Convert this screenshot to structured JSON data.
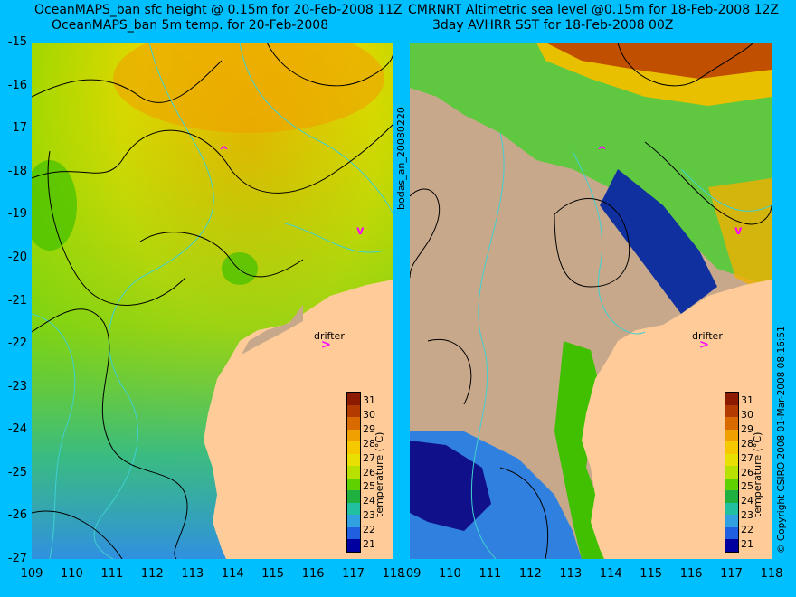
{
  "left": {
    "title_line1": "OceanMAPS_ban sfc height @ 0.15m for 20-Feb-2008 11Z",
    "title_line2": "OceanMAPS_ban 5m temp. for 20-Feb-2008"
  },
  "right": {
    "title_line1": "CMRNRT Altimetric sea level  @0.15m  for 18-Feb-2008 12Z",
    "title_line2": "3day AVHRR SST for 18-Feb-2008 00Z"
  },
  "y_ticks": [
    "-15",
    "-16",
    "-17",
    "-18",
    "-19",
    "-20",
    "-21",
    "-22",
    "-23",
    "-24",
    "-25",
    "-26",
    "-27"
  ],
  "x_ticks": [
    "109",
    "110",
    "111",
    "112",
    "113",
    "114",
    "115",
    "116",
    "117",
    "118"
  ],
  "x_ticks_right": [
    "109",
    "110",
    "111",
    "112",
    "113",
    "114",
    "115",
    "116",
    "117",
    "118"
  ],
  "center_label": "bodas_an_20080220",
  "right_label": "© Copyright CSIRO 2008   01-Mar-2008 08:16:51",
  "drifter_label": "drifter",
  "colorbar": {
    "title": "temperature (°C)",
    "ticks": [
      "31",
      "30",
      "29",
      "28",
      "27",
      "26",
      "25",
      "24",
      "23",
      "22",
      "21"
    ],
    "colors": [
      "#8b1a00",
      "#b33a00",
      "#d96a00",
      "#f0a000",
      "#f5c800",
      "#e8e000",
      "#b8e000",
      "#5fd000",
      "#20b040",
      "#20c0a0",
      "#30a0e0",
      "#2060e0",
      "#0000a0"
    ]
  },
  "colors": {
    "background": "#00bfff",
    "land": "#ffcc99",
    "land_cloud": "#c8a88a",
    "contour": "#000000",
    "altimetry": "#40d0d0",
    "drifter": "#ff00ff"
  }
}
